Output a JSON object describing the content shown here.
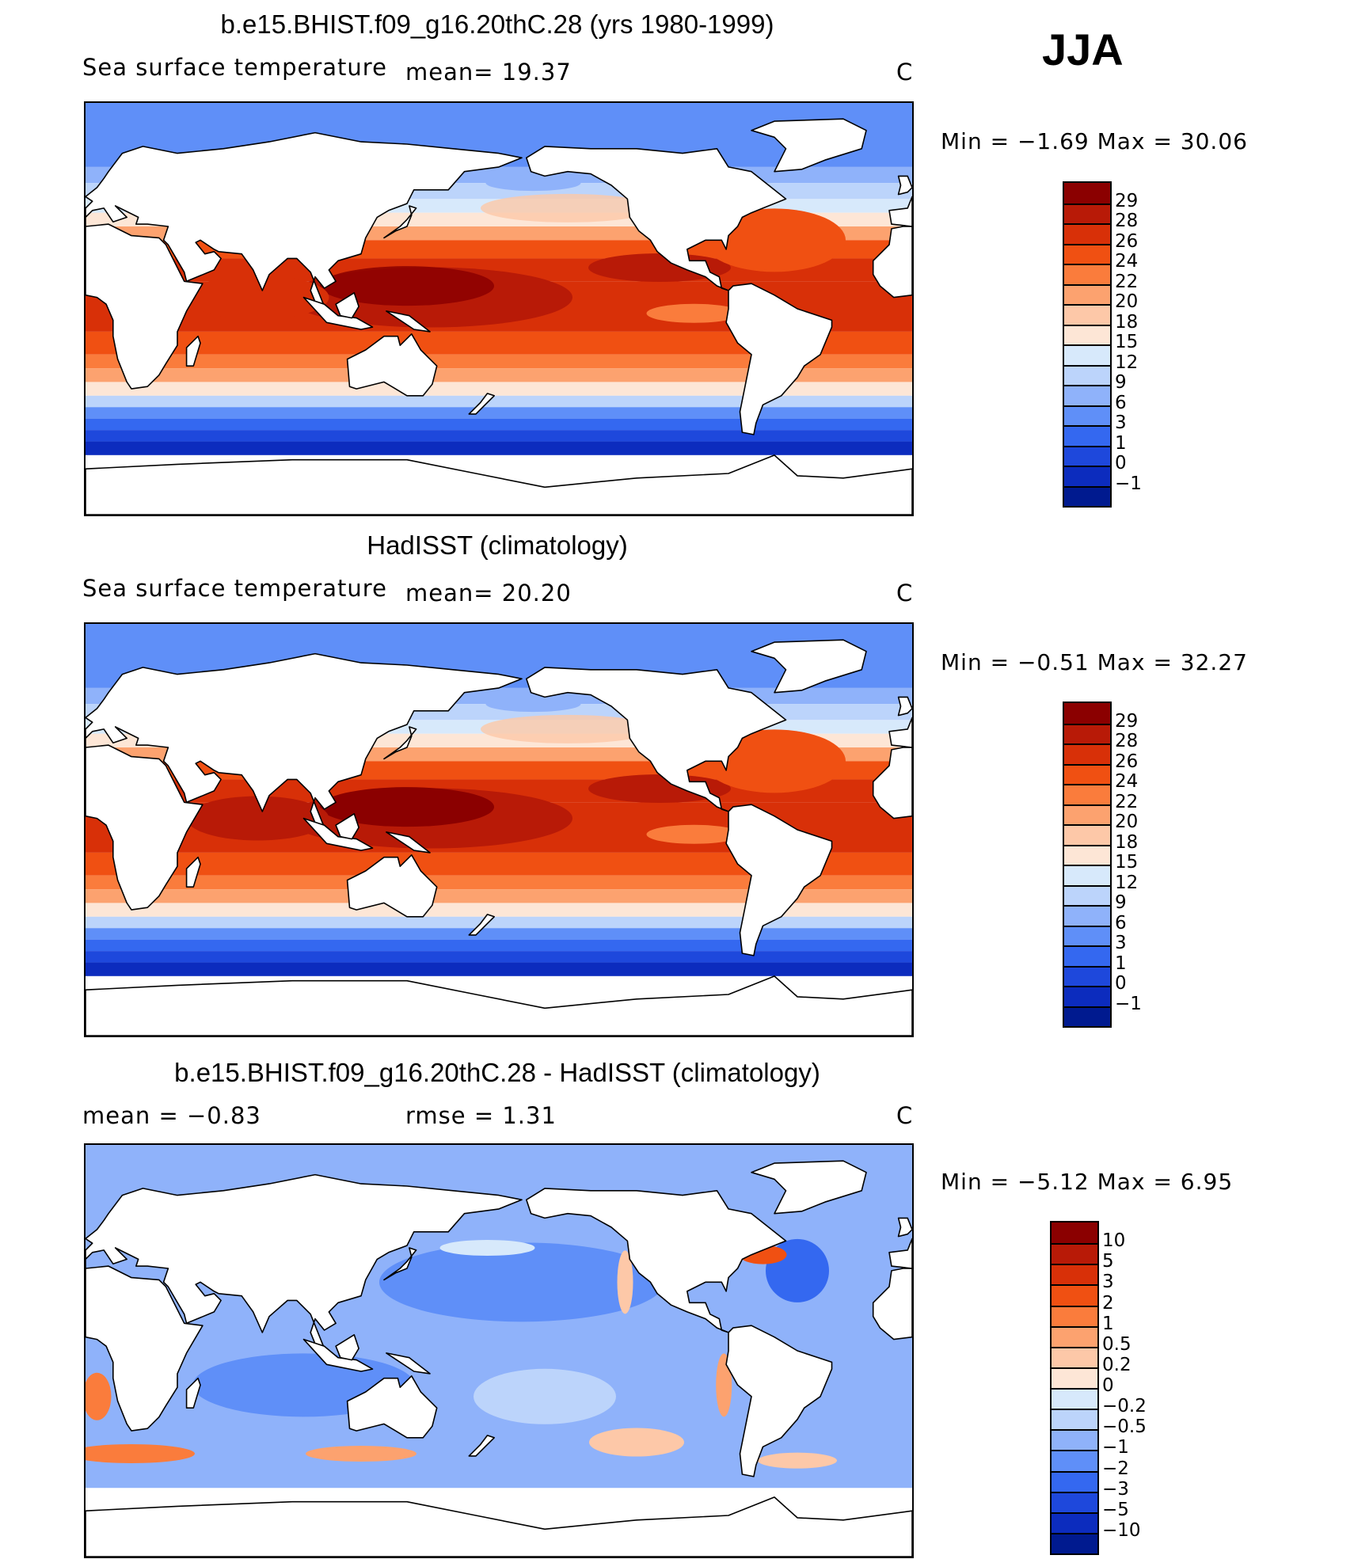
{
  "season": "JJA",
  "chart_data": [
    {
      "type": "heatmap",
      "title": "b.e15.BHIST.f09_g16.20thC.28 (yrs 1980-1999)",
      "left_label": "Sea surface temperature",
      "mean_label": "mean=   19.37",
      "units": "C",
      "min_max": "Min =   −1.69  Max =   30.06",
      "colorbar": {
        "levels": [
          "29",
          "28",
          "26",
          "24",
          "22",
          "20",
          "18",
          "15",
          "12",
          "9",
          "6",
          "3",
          "1",
          "0",
          "−1"
        ],
        "colors": [
          "#8b0000",
          "#b81a07",
          "#d83008",
          "#f05012",
          "#fa7c3c",
          "#fca26f",
          "#fdc8a8",
          "#fde6d6",
          "#d7e9fb",
          "#bcd4fb",
          "#8fb2fa",
          "#5f8ff8",
          "#3468f0",
          "#1e48dc",
          "#0c2cbe",
          "#001a8f"
        ]
      }
    },
    {
      "type": "heatmap",
      "title": "HadISST (climatology)",
      "left_label": "Sea surface temperature",
      "mean_label": "mean=   20.20",
      "units": "C",
      "min_max": "Min =   −0.51  Max =   32.27",
      "colorbar": {
        "levels": [
          "29",
          "28",
          "26",
          "24",
          "22",
          "20",
          "18",
          "15",
          "12",
          "9",
          "6",
          "3",
          "1",
          "0",
          "−1"
        ],
        "colors": [
          "#8b0000",
          "#b81a07",
          "#d83008",
          "#f05012",
          "#fa7c3c",
          "#fca26f",
          "#fdc8a8",
          "#fde6d6",
          "#d7e9fb",
          "#bcd4fb",
          "#8fb2fa",
          "#5f8ff8",
          "#3468f0",
          "#1e48dc",
          "#0c2cbe",
          "#001a8f"
        ]
      }
    },
    {
      "type": "heatmap",
      "title": "b.e15.BHIST.f09_g16.20thC.28 - HadISST (climatology)",
      "mean_label": "mean =   −0.83",
      "rmse_label": "rmse =    1.31",
      "units": "C",
      "min_max": "Min =   −5.12  Max =    6.95",
      "colorbar": {
        "levels": [
          "10",
          "5",
          "3",
          "2",
          "1",
          "0.5",
          "0.2",
          "0",
          "−0.2",
          "−0.5",
          "−1",
          "−2",
          "−3",
          "−5",
          "−10"
        ],
        "colors": [
          "#8b0000",
          "#b81a07",
          "#d83008",
          "#f05012",
          "#fa7c3c",
          "#fca26f",
          "#fdc8a8",
          "#fde6d6",
          "#d7e9fb",
          "#bcd4fb",
          "#8fb2fa",
          "#5f8ff8",
          "#3468f0",
          "#1e48dc",
          "#0c2cbe",
          "#001a8f"
        ]
      }
    }
  ]
}
